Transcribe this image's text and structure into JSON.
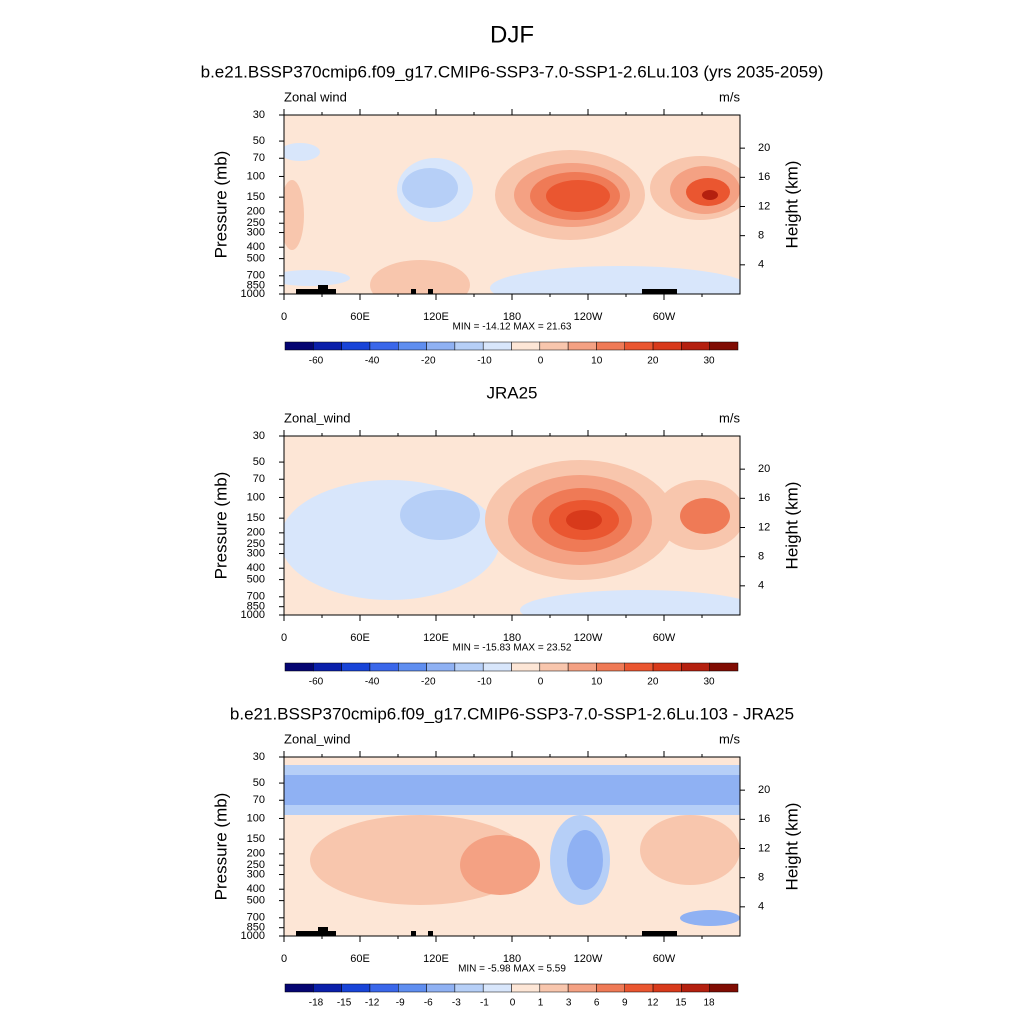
{
  "title": "DJF",
  "panels": [
    {
      "title": "b.e21.BSSP370cmip6.f09_g17.CMIP6-SSP3-7.0-SSP1-2.6Lu.103 (yrs 2035-2059)",
      "left_label": "Zonal wind",
      "units": "m/s",
      "y_label": "Pressure (mb)",
      "y2_label": "Height (km)",
      "pressure_ticks": [
        30,
        50,
        70,
        100,
        150,
        200,
        250,
        300,
        400,
        500,
        700,
        850,
        1000
      ],
      "height_ticks": [
        4,
        8,
        12,
        16,
        20
      ],
      "x_ticks": [
        "0",
        "60E",
        "120E",
        "180",
        "120W",
        "60W"
      ],
      "stats": "MIN = -14.12  MAX =  21.63",
      "colorbar_labels": [
        -60,
        -40,
        -20,
        -10,
        0,
        10,
        20,
        30
      ]
    },
    {
      "title": "JRA25",
      "left_label": "Zonal_wind",
      "units": "m/s",
      "y_label": "Pressure (mb)",
      "y2_label": "Height (km)",
      "pressure_ticks": [
        30,
        50,
        70,
        100,
        150,
        200,
        250,
        300,
        400,
        500,
        700,
        850,
        1000
      ],
      "height_ticks": [
        4,
        8,
        12,
        16,
        20
      ],
      "x_ticks": [
        "0",
        "60E",
        "120E",
        "180",
        "120W",
        "60W"
      ],
      "stats": "MIN = -15.83  MAX =  23.52",
      "colorbar_labels": [
        -60,
        -40,
        -20,
        -10,
        0,
        10,
        20,
        30
      ]
    },
    {
      "title": "b.e21.BSSP370cmip6.f09_g17.CMIP6-SSP3-7.0-SSP1-2.6Lu.103 - JRA25",
      "left_label": "Zonal_wind",
      "units": "m/s",
      "y_label": "Pressure (mb)",
      "y2_label": "Height (km)",
      "pressure_ticks": [
        30,
        50,
        70,
        100,
        150,
        200,
        250,
        300,
        400,
        500,
        700,
        850,
        1000
      ],
      "height_ticks": [
        4,
        8,
        12,
        16,
        20
      ],
      "x_ticks": [
        "0",
        "60E",
        "120E",
        "180",
        "120W",
        "60W"
      ],
      "stats": "MIN =  -5.98  MAX =   5.59",
      "colorbar_labels": [
        -18,
        -15,
        -12,
        -9,
        -6,
        -3,
        -1,
        0,
        1,
        3,
        6,
        9,
        12,
        15,
        18
      ]
    }
  ],
  "colors": [
    "#050572",
    "#0a1faa",
    "#1844d8",
    "#3a67ea",
    "#5f8ef0",
    "#8fb1f3",
    "#b6cff7",
    "#d8e6fb",
    "#fde6d6",
    "#f8c6ad",
    "#f4a183",
    "#ef7a56",
    "#ea5630",
    "#d83a1b",
    "#b4200f",
    "#800c03"
  ]
}
